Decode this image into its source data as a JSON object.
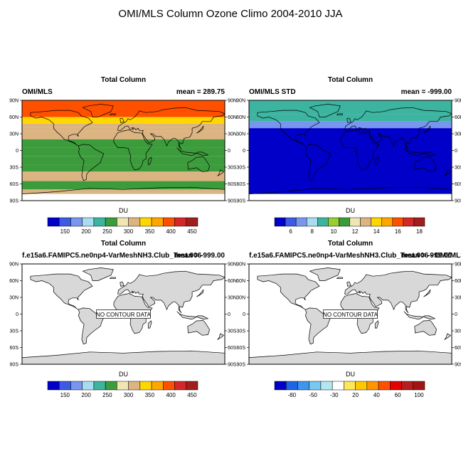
{
  "page_title": "OMI/MLS Column Ozone Climo 2004-2010 JJA",
  "lat_tick_labels": [
    "90N",
    "60N",
    "30N",
    "0",
    "30S",
    "60S",
    "90S"
  ],
  "colors": {
    "continent_fill": "#d8d8d8",
    "map_border": "#000000",
    "background": "#ffffff"
  },
  "chart_data": [
    {
      "type": "contour-map",
      "panel_title": "Total Column",
      "left_label": "OMI/MLS",
      "right_label": "mean = 289.75",
      "colorbar_label": "DU",
      "colorbar_ticks": [
        "150",
        "200",
        "250",
        "300",
        "350",
        "400",
        "450"
      ],
      "colorbar_colors": [
        "#0000c8",
        "#3c5ae6",
        "#7896f0",
        "#aadcf0",
        "#3cb4a0",
        "#3c9c3c",
        "#f0e6b4",
        "#dcb482",
        "#ffd700",
        "#ffa500",
        "#ff5000",
        "#d22828",
        "#a01e1e"
      ],
      "lat_bands": [
        {
          "lat": [
            60,
            90
          ],
          "value": 420
        },
        {
          "lat": [
            48,
            60
          ],
          "value": 380
        },
        {
          "lat": [
            42,
            48
          ],
          "value": 345
        },
        {
          "lat": [
            35,
            42
          ],
          "value": 320
        },
        {
          "lat": [
            20,
            35
          ],
          "value": 300
        },
        {
          "lat": [
            5,
            20
          ],
          "value": 270
        },
        {
          "lat": [
            -10,
            5
          ],
          "value": 255
        },
        {
          "lat": [
            -25,
            -10
          ],
          "value": 270
        },
        {
          "lat": [
            -38,
            -25
          ],
          "value": 290
        },
        {
          "lat": [
            -55,
            -38
          ],
          "value": 300
        },
        {
          "lat": [
            -70,
            -55
          ],
          "value": 285
        },
        {
          "lat": [
            -78,
            -70
          ],
          "value": 330
        }
      ]
    },
    {
      "type": "contour-map",
      "panel_title": "Total Column",
      "left_label": "OMI/MLS STD",
      "right_label": "mean = -999.00",
      "colorbar_label": "DU",
      "colorbar_ticks": [
        "6",
        "8",
        "10",
        "12",
        "14",
        "16",
        "18"
      ],
      "colorbar_colors": [
        "#0000c8",
        "#3c5ae6",
        "#7896f0",
        "#aadcf0",
        "#3cb4a0",
        "#9acd32",
        "#3c9c3c",
        "#f0e6b4",
        "#dcb482",
        "#ffd700",
        "#ffa500",
        "#ff5000",
        "#d22828",
        "#a01e1e"
      ],
      "lat_bands": [
        {
          "lat": [
            65,
            90
          ],
          "value": 9
        },
        {
          "lat": [
            52,
            65
          ],
          "value": 8
        },
        {
          "lat": [
            40,
            52
          ],
          "value": 7
        },
        {
          "lat": [
            -78,
            40
          ],
          "value": 5
        }
      ]
    },
    {
      "type": "contour-map",
      "panel_title": "Total Column",
      "left_label": "f.e15a6.FAMIPC5.ne0np4-VarMeshNH3.Club_Test.006",
      "right_label": "mean = -999.00",
      "colorbar_label": "DU",
      "colorbar_ticks": [
        "150",
        "200",
        "250",
        "300",
        "350",
        "400",
        "450"
      ],
      "colorbar_colors": [
        "#0000c8",
        "#3c5ae6",
        "#7896f0",
        "#aadcf0",
        "#3cb4a0",
        "#3c9c3c",
        "#f0e6b4",
        "#dcb482",
        "#ffd700",
        "#ffa500",
        "#ff5000",
        "#d22828",
        "#a01e1e"
      ],
      "no_data_text": "NO CONTOUR DATA"
    },
    {
      "type": "contour-map",
      "panel_title": "Total Column",
      "left_label": "f.e15a6.FAMIPC5.ne0np4-VarMeshNH3.Club_Test.006 - OMI/MLS",
      "right_label": "mean = -999.00",
      "colorbar_label": "DU",
      "colorbar_ticks": [
        "-80",
        "-50",
        "-30",
        "20",
        "40",
        "60",
        "100"
      ],
      "colorbar_colors": [
        "#0000c8",
        "#1e64e6",
        "#3c96f0",
        "#78c8f0",
        "#b4e6f0",
        "#ffffff",
        "#ffe65a",
        "#ffc800",
        "#ff9600",
        "#ff5000",
        "#e60000",
        "#b41e1e",
        "#a01414"
      ],
      "no_data_text": "NO CONTOUR DATA"
    }
  ]
}
